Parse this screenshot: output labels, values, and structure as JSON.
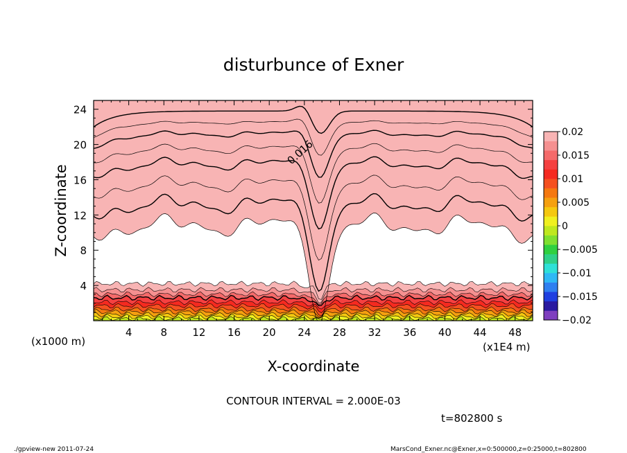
{
  "chart_data": {
    "type": "contour",
    "title": "disturbunce of Exner",
    "xlabel": "X-coordinate",
    "ylabel": "Z-coordinate",
    "x_unit_note": "(x1E4 m)",
    "y_unit_note": "(x1000 m)",
    "xlim": [
      0,
      50
    ],
    "ylim": [
      0,
      25
    ],
    "x_ticks": [
      4,
      8,
      12,
      16,
      20,
      24,
      28,
      32,
      36,
      40,
      44,
      48
    ],
    "x_tick_labels": [
      "4",
      "8",
      "12",
      "16",
      "20",
      "24",
      "28",
      "32",
      "36",
      "40",
      "44",
      "48"
    ],
    "y_ticks": [
      4,
      8,
      12,
      16,
      20,
      24
    ],
    "y_tick_labels": [
      "4",
      "8",
      "12",
      "16",
      "20",
      "24"
    ],
    "contour_interval_text": "CONTOUR INTERVAL = 2.000E-03",
    "contour_label": "0.016",
    "time_text": "t=802800 s",
    "colorbar": {
      "range": [
        -0.02,
        0.02
      ],
      "tick_values": [
        0.02,
        0.015,
        0.01,
        0.005,
        0,
        -0.005,
        -0.01,
        -0.015,
        -0.02
      ],
      "tick_labels": [
        "0.02",
        "0.015",
        "0.01",
        "0.005",
        "0",
        "−0.005",
        "−0.01",
        "−0.015",
        "−0.02"
      ],
      "colors": [
        "#7f3fbf",
        "#2a1aa0",
        "#1f3fe0",
        "#2f7ff0",
        "#2fb8f5",
        "#2fe0d8",
        "#2fd088",
        "#2fd040",
        "#7fe030",
        "#bfe81f",
        "#f0f020",
        "#f5c810",
        "#f5a010",
        "#f57810",
        "#f55020",
        "#f52a20",
        "#f54040",
        "#f56a6a",
        "#f59090",
        "#f8b4b4"
      ]
    },
    "upper_band_levels": [
      {
        "z_bottom": 23.8,
        "color": "#f5a010"
      },
      {
        "z_bottom": 22.5,
        "color": "#f57810"
      },
      {
        "z_bottom": 21.2,
        "color": "#f55020"
      },
      {
        "z_bottom": 19.5,
        "color": "#f52a20"
      },
      {
        "z_bottom": 17.8,
        "color": "#f54040"
      },
      {
        "z_bottom": 15.5,
        "color": "#f56a6a"
      },
      {
        "z_bottom": 13.2,
        "color": "#f59090"
      },
      {
        "z_bottom": 10.8,
        "color": "#f8b4b4"
      }
    ],
    "lower_band_levels": [
      {
        "z_top": 4.2,
        "color": "#f8b4b4"
      },
      {
        "z_top": 3.5,
        "color": "#f59090"
      },
      {
        "z_top": 3.0,
        "color": "#f56a6a"
      },
      {
        "z_top": 2.6,
        "color": "#f54040"
      },
      {
        "z_top": 2.1,
        "color": "#f52a20"
      },
      {
        "z_top": 1.7,
        "color": "#f55020"
      },
      {
        "z_top": 1.3,
        "color": "#f57810"
      },
      {
        "z_top": 1.0,
        "color": "#f5a010"
      },
      {
        "z_top": 0.7,
        "color": "#f5c810"
      },
      {
        "z_top": 0.45,
        "color": "#f0f020"
      },
      {
        "z_top": 0.2,
        "color": "#bfe81f"
      }
    ]
  },
  "footer": {
    "left": "./gpview-new   2011-07-24",
    "right": "MarsCond_Exner.nc@Exner,x=0:500000,z=0:25000,t=802800"
  }
}
